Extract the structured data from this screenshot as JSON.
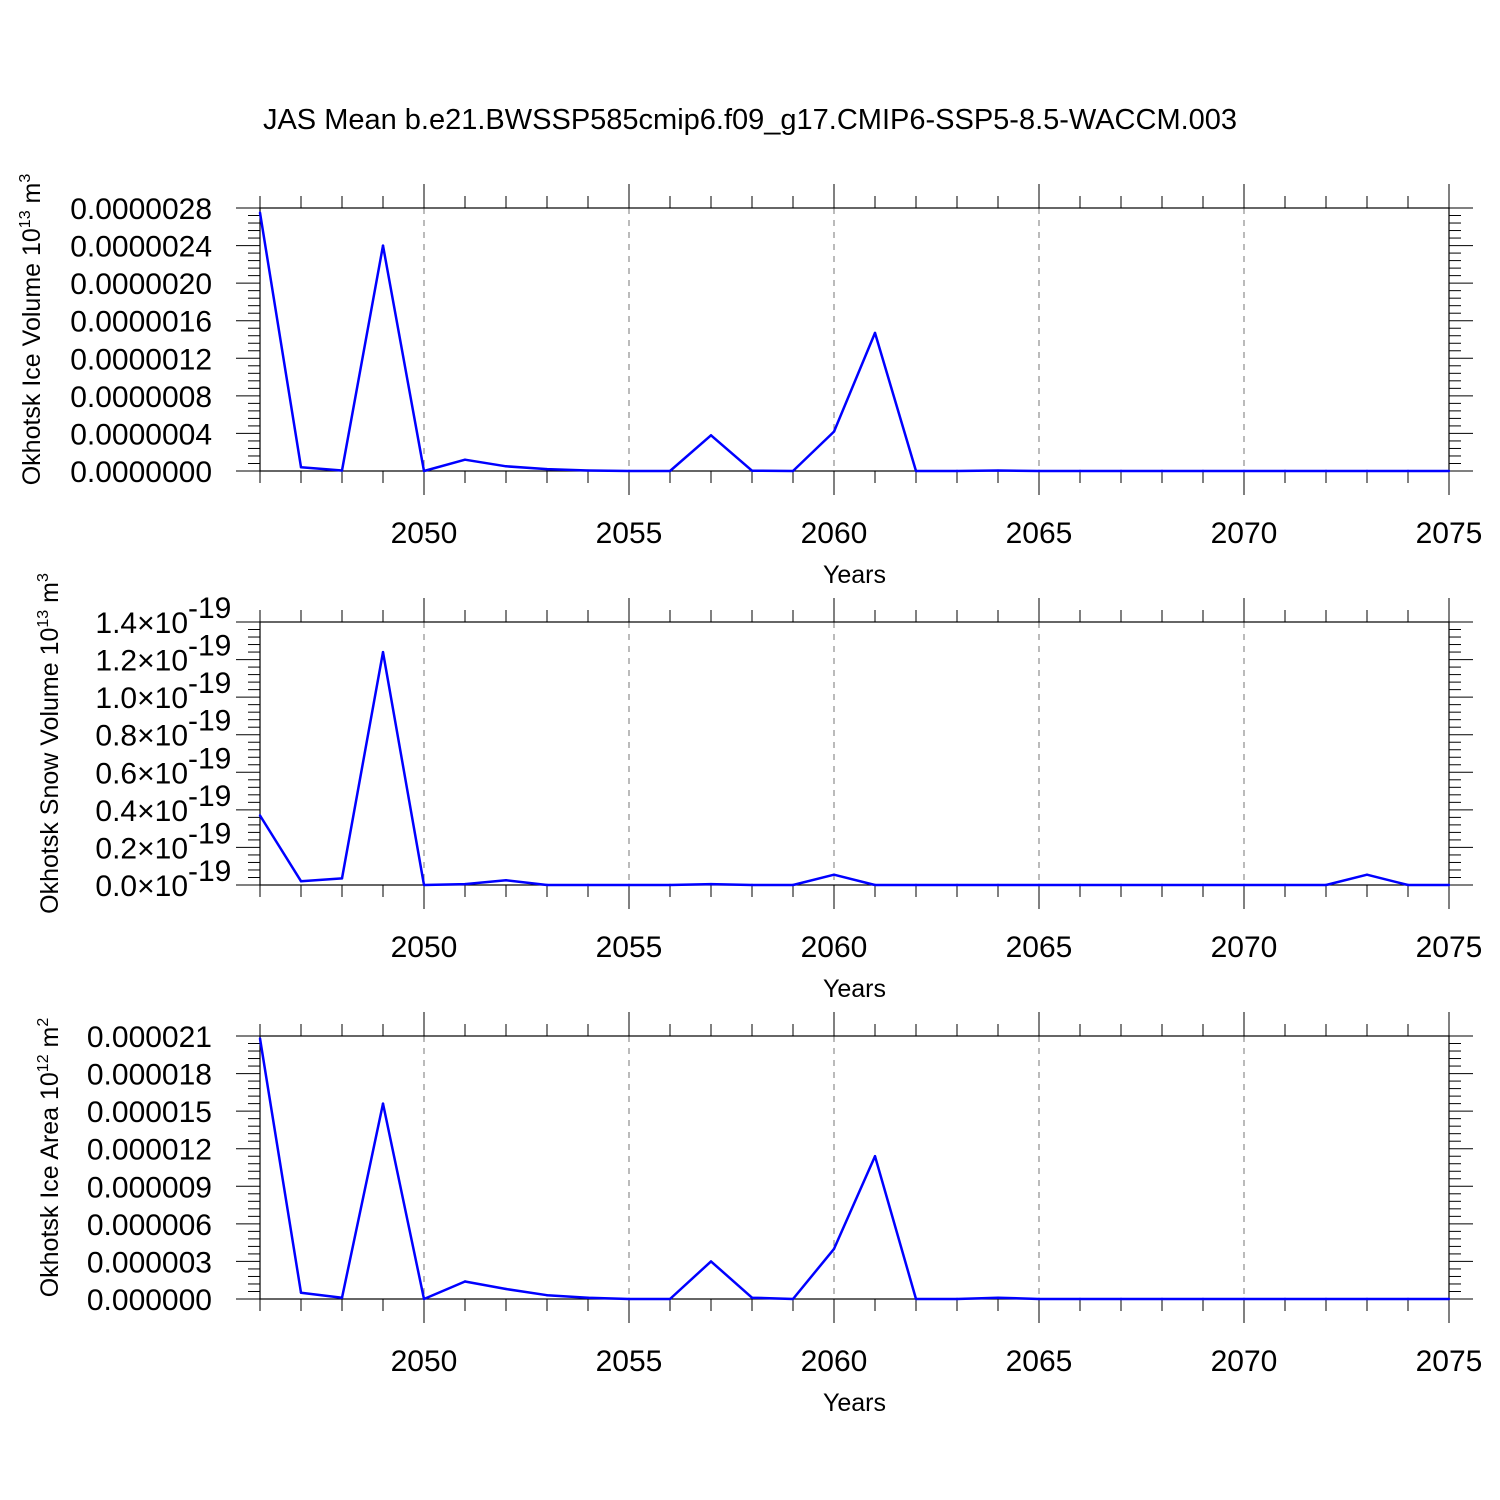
{
  "title": "JAS Mean b.e21.BWSSP585cmip6.f09_g17.CMIP6-SSP5-8.5-WACCM.003",
  "colors": {
    "series": "#0000ff",
    "axis": "#000000",
    "grid": "#777777"
  },
  "chart_data": [
    {
      "type": "line",
      "xlabel": "Years",
      "ylabel": {
        "text": "Okhotsk Ice Volume 10",
        "exponent": "13",
        "unit": " m",
        "unit_exponent": "3"
      },
      "xlim": [
        2046,
        2075
      ],
      "ylim": [
        0,
        2.8e-06
      ],
      "x_ticks": [
        "2050",
        "2055",
        "2060",
        "2065",
        "2070",
        "2075"
      ],
      "y_ticks": [
        "0.0000000",
        "0.0000004",
        "0.0000008",
        "0.0000012",
        "0.0000016",
        "0.0000020",
        "0.0000024",
        "0.0000028"
      ],
      "y_tick_exponent": "",
      "grid": "x-dashed",
      "x": [
        2046,
        2047,
        2048,
        2049,
        2050,
        2051,
        2052,
        2053,
        2054,
        2055,
        2056,
        2057,
        2058,
        2059,
        2060,
        2061,
        2062,
        2063,
        2064,
        2065,
        2066,
        2067,
        2068,
        2069,
        2070,
        2071,
        2072,
        2073,
        2074,
        2075
      ],
      "y": [
        2.75e-06,
        4e-08,
        5e-09,
        2.4e-06,
        0.0,
        1.2e-07,
        5e-08,
        2e-08,
        5e-09,
        0.0,
        0.0,
        3.8e-07,
        3e-09,
        0.0,
        4.2e-07,
        1.47e-06,
        0.0,
        0.0,
        5e-09,
        0.0,
        0.0,
        0.0,
        0.0,
        0.0,
        0.0,
        0.0,
        0.0,
        0.0,
        0.0,
        0.0
      ]
    },
    {
      "type": "line",
      "xlabel": "Years",
      "ylabel": {
        "text": "Okhotsk Snow Volume 10",
        "exponent": "13",
        "unit": " m",
        "unit_exponent": "3"
      },
      "xlim": [
        2046,
        2075
      ],
      "ylim": [
        0,
        1.4
      ],
      "x_ticks": [
        "2050",
        "2055",
        "2060",
        "2065",
        "2070",
        "2075"
      ],
      "y_ticks": [
        "0.0×10",
        "0.2×10",
        "0.4×10",
        "0.6×10",
        "0.8×10",
        "1.0×10",
        "1.2×10",
        "1.4×10"
      ],
      "y_tick_exponent": "-19",
      "grid": "x-dashed",
      "x": [
        2046,
        2047,
        2048,
        2049,
        2050,
        2051,
        2052,
        2053,
        2054,
        2055,
        2056,
        2057,
        2058,
        2059,
        2060,
        2061,
        2062,
        2063,
        2064,
        2065,
        2066,
        2067,
        2068,
        2069,
        2070,
        2071,
        2072,
        2073,
        2074,
        2075
      ],
      "y": [
        0.37,
        0.02,
        0.035,
        1.24,
        0.0,
        0.005,
        0.025,
        0.0,
        0.0,
        0.0,
        0.0,
        0.005,
        0.0,
        0.0,
        0.055,
        0.0,
        0.0,
        0.0,
        0.0,
        0.0,
        0.0,
        0.0,
        0.0,
        0.0,
        0.0,
        0.0,
        0.0,
        0.055,
        0.0,
        0.0
      ]
    },
    {
      "type": "line",
      "xlabel": "Years",
      "ylabel": {
        "text": "Okhotsk Ice Area 10",
        "exponent": "12",
        "unit": " m",
        "unit_exponent": "2"
      },
      "xlim": [
        2046,
        2075
      ],
      "ylim": [
        0,
        2.1e-05
      ],
      "x_ticks": [
        "2050",
        "2055",
        "2060",
        "2065",
        "2070",
        "2075"
      ],
      "y_ticks": [
        "0.000000",
        "0.000003",
        "0.000006",
        "0.000009",
        "0.000012",
        "0.000015",
        "0.000018",
        "0.000021"
      ],
      "y_tick_exponent": "",
      "grid": "x-dashed",
      "x": [
        2046,
        2047,
        2048,
        2049,
        2050,
        2051,
        2052,
        2053,
        2054,
        2055,
        2056,
        2057,
        2058,
        2059,
        2060,
        2061,
        2062,
        2063,
        2064,
        2065,
        2066,
        2067,
        2068,
        2069,
        2070,
        2071,
        2072,
        2073,
        2074,
        2075
      ],
      "y": [
        2.08e-05,
        5e-07,
        1e-07,
        1.56e-05,
        0.0,
        1.4e-06,
        8e-07,
        3e-07,
        1e-07,
        0.0,
        0.0,
        3e-06,
        1e-07,
        0.0,
        4e-06,
        1.14e-05,
        0.0,
        0.0,
        1e-07,
        0.0,
        0.0,
        0.0,
        0.0,
        0.0,
        0.0,
        0.0,
        0.0,
        0.0,
        0.0,
        0.0
      ]
    }
  ]
}
